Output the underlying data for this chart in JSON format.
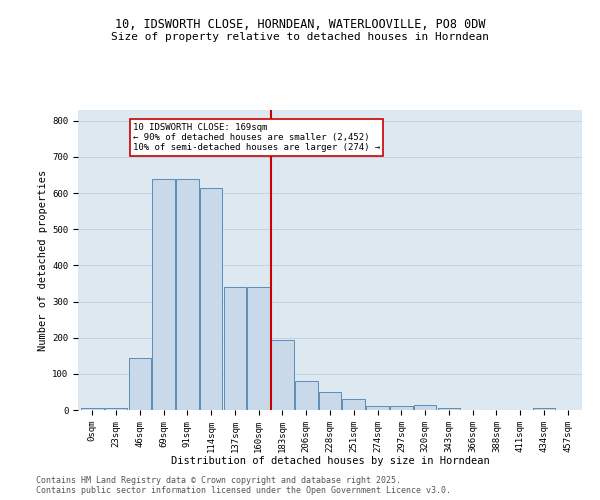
{
  "title_line1": "10, IDSWORTH CLOSE, HORNDEAN, WATERLOOVILLE, PO8 0DW",
  "title_line2": "Size of property relative to detached houses in Horndean",
  "xlabel": "Distribution of detached houses by size in Horndean",
  "ylabel": "Number of detached properties",
  "categories": [
    "0sqm",
    "23sqm",
    "46sqm",
    "69sqm",
    "91sqm",
    "114sqm",
    "137sqm",
    "160sqm",
    "183sqm",
    "206sqm",
    "228sqm",
    "251sqm",
    "274sqm",
    "297sqm",
    "320sqm",
    "343sqm",
    "366sqm",
    "388sqm",
    "411sqm",
    "434sqm",
    "457sqm"
  ],
  "bar_heights": [
    5,
    5,
    145,
    640,
    640,
    615,
    340,
    340,
    195,
    80,
    50,
    30,
    12,
    12,
    15,
    5,
    0,
    0,
    0,
    5,
    0
  ],
  "bar_color": "#c9d9ea",
  "bar_edge_color": "#5b8db8",
  "property_line_x": 7.5,
  "annotation_text": "10 IDSWORTH CLOSE: 169sqm\n← 90% of detached houses are smaller (2,452)\n10% of semi-detached houses are larger (274) →",
  "annotation_box_edge_color": "#cc0000",
  "annotation_line_color": "#cc0000",
  "ylim": [
    0,
    830
  ],
  "yticks": [
    0,
    100,
    200,
    300,
    400,
    500,
    600,
    700,
    800
  ],
  "grid_color": "#b8cfe0",
  "background_color": "#dde8f0",
  "footer_text": "Contains HM Land Registry data © Crown copyright and database right 2025.\nContains public sector information licensed under the Open Government Licence v3.0.",
  "title_fontsize": 8.5,
  "subtitle_fontsize": 8,
  "axis_label_fontsize": 7.5,
  "tick_fontsize": 6.5,
  "annotation_fontsize": 6.5,
  "footer_fontsize": 6
}
